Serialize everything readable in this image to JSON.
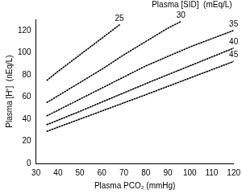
{
  "chart_data": {
    "type": "line",
    "x_label": "Plasma PCO₂ (mmHg)",
    "y_label": "Plasma [H⁺]  (nEq/L)",
    "annotations": [
      "Plasma [SID]  (mEq/L)"
    ],
    "xlim": [
      30,
      120
    ],
    "xticks": [
      30,
      40,
      50,
      60,
      70,
      80,
      90,
      100,
      110,
      120
    ],
    "ylim": [
      0,
      130
    ],
    "yticks": [
      0,
      20,
      40,
      60,
      80,
      100,
      120
    ],
    "grid": false,
    "color": "#000000",
    "line_style": "dotted",
    "marker": "none",
    "data_labels": false,
    "series": [
      {
        "name": "25",
        "x": [
          35,
          40,
          50,
          60,
          68
        ],
        "values": [
          75,
          83,
          98,
          113,
          125
        ]
      },
      {
        "name": "30",
        "x": [
          35,
          50,
          60,
          70,
          80,
          90,
          96
        ],
        "values": [
          55,
          73,
          85,
          98,
          110,
          122,
          128
        ]
      },
      {
        "name": "35",
        "x": [
          35,
          50,
          60,
          80,
          100,
          120
        ],
        "values": [
          43,
          58,
          68,
          88,
          105,
          120
        ]
      },
      {
        "name": "40",
        "x": [
          35,
          50,
          80,
          100,
          120
        ],
        "values": [
          35,
          47,
          72,
          88,
          104
        ]
      },
      {
        "name": "45",
        "x": [
          35,
          50,
          80,
          100,
          120
        ],
        "values": [
          29,
          40,
          62,
          77,
          92
        ]
      }
    ]
  }
}
